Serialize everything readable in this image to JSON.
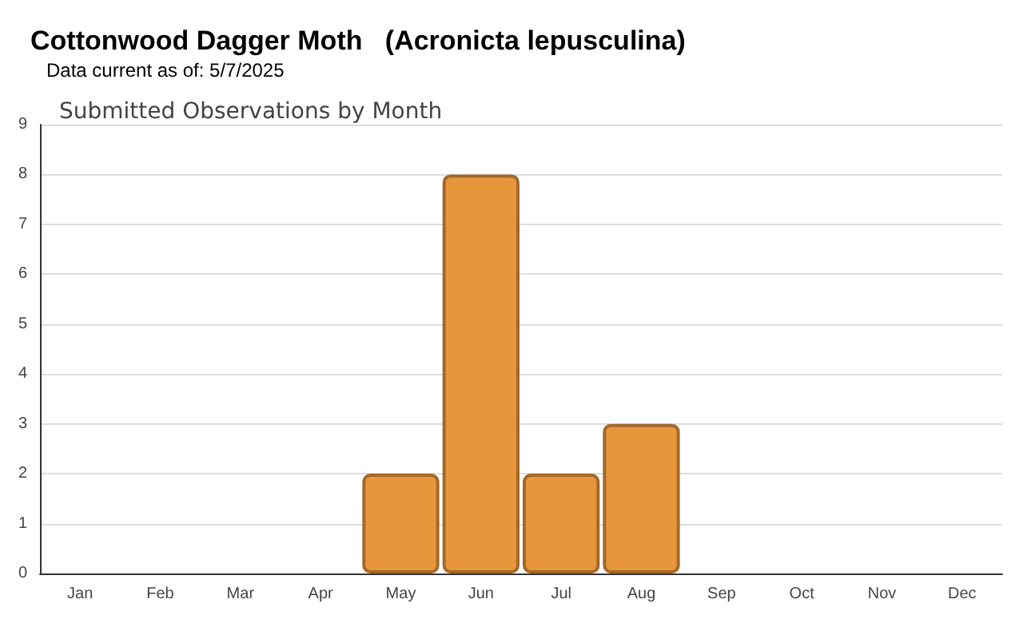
{
  "chart_data": {
    "type": "bar",
    "title": "Cottonwood Dagger Moth   (Acronicta lepusculina)",
    "subtitle": "Data current as of: 5/7/2025",
    "annotations": [
      "Submitted Observations by Month"
    ],
    "categories": [
      "Jan",
      "Feb",
      "Mar",
      "Apr",
      "May",
      "Jun",
      "Jul",
      "Aug",
      "Sep",
      "Oct",
      "Nov",
      "Dec"
    ],
    "values": [
      0,
      0,
      0,
      0,
      2,
      8,
      2,
      3,
      0,
      0,
      0,
      0
    ],
    "color": "#e8963c",
    "ylim": [
      0,
      9
    ],
    "yticks": [
      0,
      1,
      2,
      3,
      4,
      5,
      6,
      7,
      8,
      9
    ],
    "grid": "y"
  }
}
